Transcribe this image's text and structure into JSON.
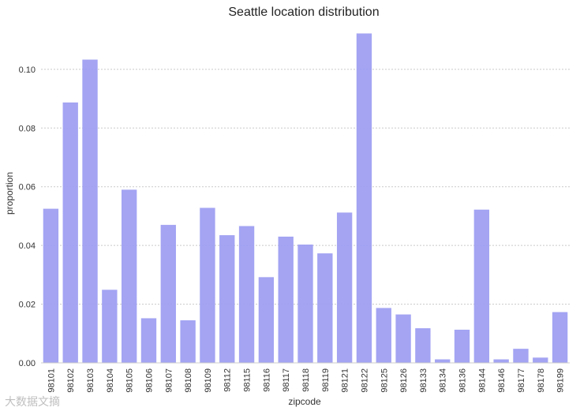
{
  "chart_data": {
    "type": "bar",
    "title": "Seattle location distribution",
    "xlabel": "zipcode",
    "ylabel": "proportion",
    "ylim": [
      0,
      0.115
    ],
    "yticks": [
      "0.00",
      "0.02",
      "0.04",
      "0.06",
      "0.08",
      "0.10"
    ],
    "grid": true,
    "categories": [
      "98101",
      "98102",
      "98103",
      "98104",
      "98105",
      "98106",
      "98107",
      "98108",
      "98109",
      "98112",
      "98115",
      "98116",
      "98117",
      "98118",
      "98119",
      "98121",
      "98122",
      "98125",
      "98126",
      "98133",
      "98134",
      "98136",
      "98144",
      "98146",
      "98177",
      "98178",
      "98199"
    ],
    "values": [
      0.0525,
      0.0887,
      0.1033,
      0.0249,
      0.059,
      0.0152,
      0.047,
      0.0145,
      0.0528,
      0.0435,
      0.0466,
      0.0292,
      0.043,
      0.0403,
      0.0373,
      0.0512,
      0.1122,
      0.0187,
      0.0165,
      0.0118,
      0.0012,
      0.0113,
      0.0522,
      0.0012,
      0.0048,
      0.0018,
      0.0173
    ],
    "bar_color": "#9f9ff2"
  },
  "watermark": "大数据文摘"
}
